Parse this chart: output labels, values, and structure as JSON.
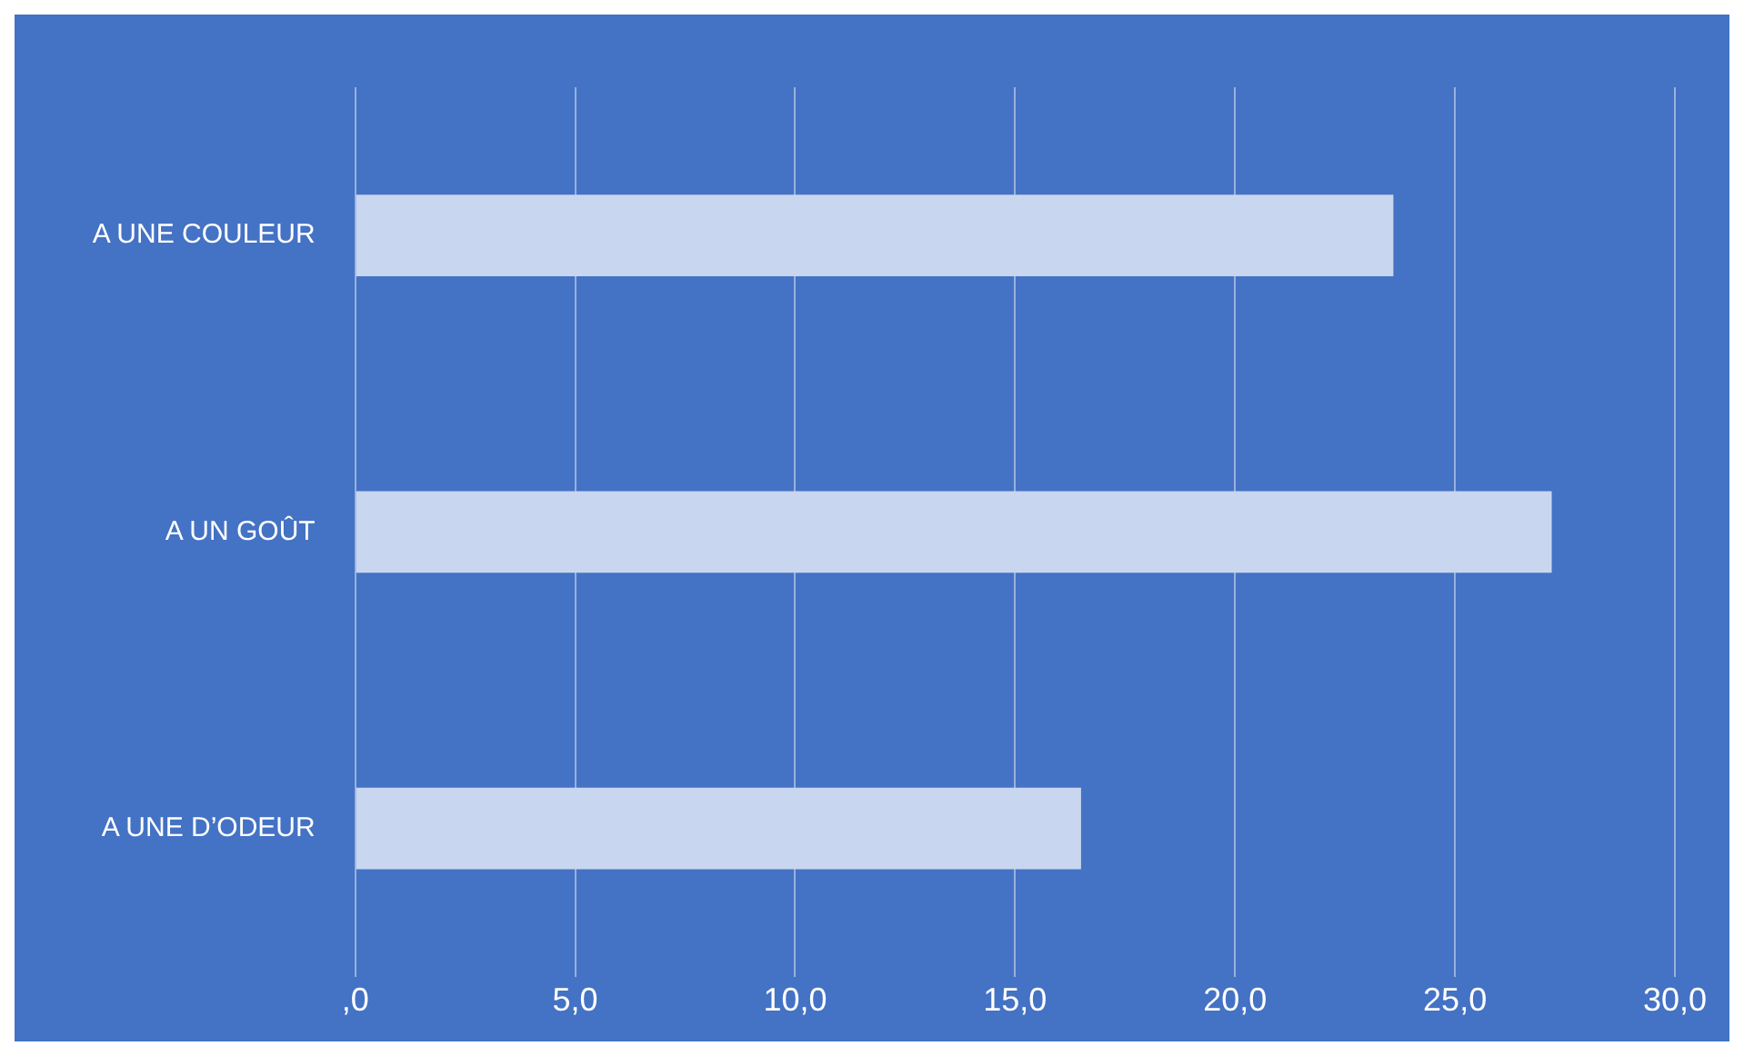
{
  "chart_data": {
    "type": "bar",
    "orientation": "horizontal",
    "categories": [
      "A UNE COULEUR",
      "A UN GOÛT",
      "A UNE D’ODEUR"
    ],
    "values": [
      23.6,
      27.2,
      16.5
    ],
    "color": "#c9d6f0",
    "xlim": [
      0,
      30
    ],
    "xticks": [
      {
        "value": 0,
        "label": ",0"
      },
      {
        "value": 5,
        "label": "5,0"
      },
      {
        "value": 10,
        "label": "10,0"
      },
      {
        "value": 15,
        "label": "15,0"
      },
      {
        "value": 20,
        "label": "20,0"
      },
      {
        "value": 25,
        "label": "25,0"
      },
      {
        "value": 30,
        "label": "30,0"
      }
    ],
    "grid": "x",
    "legend": false
  }
}
